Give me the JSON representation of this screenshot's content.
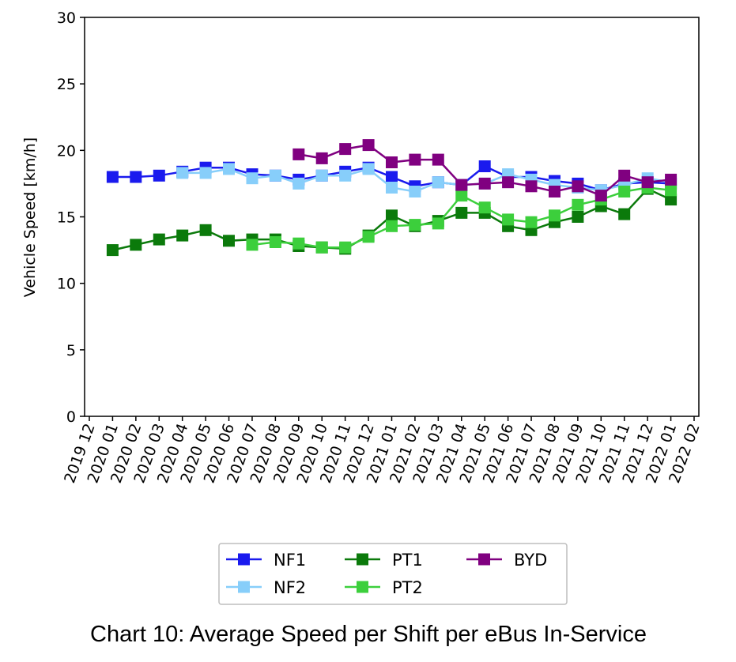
{
  "chart_data": {
    "type": "line",
    "title": "",
    "caption": "Chart 10: Average Speed per Shift per eBus In-Service",
    "xlabel": "",
    "ylabel": "Vehicle Speed [km/h]",
    "ylim": [
      0,
      30
    ],
    "yticks": [
      0,
      5,
      10,
      15,
      20,
      25,
      30
    ],
    "xticks": [
      "2019 12",
      "2020 01",
      "2020 02",
      "2020 03",
      "2020 04",
      "2020 05",
      "2020 06",
      "2020 07",
      "2020 08",
      "2020 09",
      "2020 10",
      "2020 11",
      "2020 12",
      "2021 01",
      "2021 02",
      "2021 03",
      "2021 04",
      "2021 05",
      "2021 06",
      "2021 07",
      "2021 08",
      "2021 09",
      "2021 10",
      "2021 11",
      "2021 12",
      "2022 01",
      "2022 02"
    ],
    "grid": false,
    "legend_position": "bottom-center",
    "marker": "square",
    "series": [
      {
        "name": "NF1",
        "color": "#1a1aee",
        "x": [
          "2020 01",
          "2020 02",
          "2020 03",
          "2020 04",
          "2020 05",
          "2020 06",
          "2020 07",
          "2020 08",
          "2020 09",
          "2020 10",
          "2020 11",
          "2020 12",
          "2021 01",
          "2021 02",
          "2021 03",
          "2021 04",
          "2021 05",
          "2021 06",
          "2021 07",
          "2021 08",
          "2021 09",
          "2021 10",
          "2021 11",
          "2021 12",
          "2022 01"
        ],
        "values": [
          18.0,
          18.0,
          18.1,
          18.4,
          18.7,
          18.7,
          18.2,
          18.1,
          17.8,
          18.1,
          18.4,
          18.7,
          18.0,
          17.3,
          17.6,
          17.4,
          18.8,
          18.0,
          18.0,
          17.7,
          17.5,
          17.0,
          17.5,
          17.6,
          17.5
        ]
      },
      {
        "name": "NF2",
        "color": "#87cefa",
        "x": [
          "2020 04",
          "2020 05",
          "2020 06",
          "2020 07",
          "2020 08",
          "2020 09",
          "2020 10",
          "2020 11",
          "2020 12",
          "2021 01",
          "2021 02",
          "2021 03",
          "2021 04",
          "2021 05",
          "2021 06",
          "2021 07",
          "2021 08",
          "2021 09",
          "2021 10",
          "2021 11",
          "2021 12",
          "2022 01"
        ],
        "values": [
          18.3,
          18.3,
          18.6,
          17.9,
          18.1,
          17.5,
          18.1,
          18.1,
          18.6,
          17.2,
          16.9,
          17.6,
          17.4,
          17.5,
          18.2,
          17.8,
          17.4,
          17.2,
          17.0,
          17.4,
          17.9,
          17.6
        ]
      },
      {
        "name": "PT1",
        "color": "#0b7a0b",
        "x": [
          "2020 01",
          "2020 02",
          "2020 03",
          "2020 04",
          "2020 05",
          "2020 06",
          "2020 07",
          "2020 08",
          "2020 09",
          "2020 10",
          "2020 11",
          "2020 12",
          "2021 01",
          "2021 02",
          "2021 03",
          "2021 04",
          "2021 05",
          "2021 06",
          "2021 07",
          "2021 08",
          "2021 09",
          "2021 10",
          "2021 11",
          "2021 12",
          "2022 01"
        ],
        "values": [
          12.5,
          12.9,
          13.3,
          13.6,
          14.0,
          13.2,
          13.3,
          13.3,
          12.8,
          12.7,
          12.6,
          13.6,
          15.1,
          14.3,
          14.7,
          15.3,
          15.3,
          14.3,
          14.0,
          14.6,
          15.0,
          15.8,
          15.2,
          17.1,
          16.3
        ]
      },
      {
        "name": "PT2",
        "color": "#3ccf3c",
        "x": [
          "2020 07",
          "2020 08",
          "2020 09",
          "2020 10",
          "2020 11",
          "2020 12",
          "2021 01",
          "2021 02",
          "2021 03",
          "2021 04",
          "2021 05",
          "2021 06",
          "2021 07",
          "2021 08",
          "2021 09",
          "2021 10",
          "2021 11",
          "2021 12",
          "2022 01"
        ],
        "values": [
          12.9,
          13.1,
          13.0,
          12.7,
          12.7,
          13.5,
          14.3,
          14.4,
          14.5,
          16.6,
          15.7,
          14.8,
          14.6,
          15.1,
          15.9,
          16.3,
          16.9,
          17.2,
          17.0
        ]
      },
      {
        "name": "BYD",
        "color": "#800080",
        "x": [
          "2020 09",
          "2020 10",
          "2020 11",
          "2020 12",
          "2021 01",
          "2021 02",
          "2021 03",
          "2021 04",
          "2021 05",
          "2021 06",
          "2021 07",
          "2021 08",
          "2021 09",
          "2021 10",
          "2021 11",
          "2021 12",
          "2022 01"
        ],
        "values": [
          19.7,
          19.4,
          20.1,
          20.4,
          19.1,
          19.3,
          19.3,
          17.4,
          17.5,
          17.6,
          17.3,
          16.9,
          17.3,
          16.6,
          18.1,
          17.6,
          17.8
        ]
      }
    ]
  }
}
